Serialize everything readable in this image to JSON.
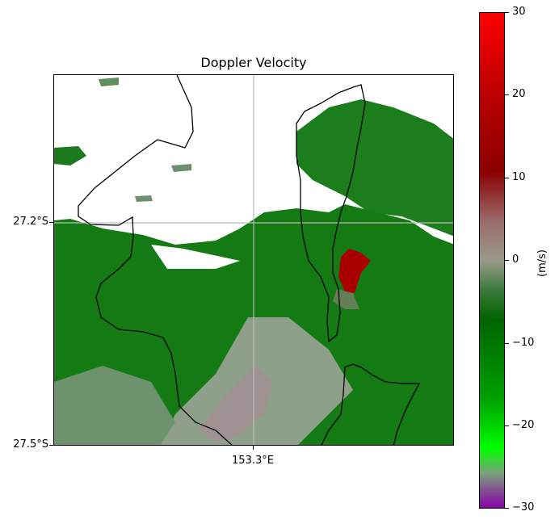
{
  "title": "Doppler Velocity",
  "axes": {
    "y_tick_labels": [
      "27.2°S",
      "27.5°S"
    ],
    "x_tick_labels": [
      "153.3°E"
    ]
  },
  "colorbar": {
    "unit_label": "(m/s)",
    "tick_labels": [
      "30",
      "20",
      "10",
      "0",
      "−10",
      "−20",
      "−30"
    ],
    "range": [
      -30,
      30
    ],
    "colors": {
      "top": "#ff0000",
      "dark_red": "#8b0000",
      "neutral": "#9a9a8a",
      "dark_green": "#006400",
      "bright_green": "#00ff00",
      "bottom": "#8800aa"
    }
  },
  "map_colors": {
    "mostly_green": "#1a7a1a",
    "grey_green": "#7a9a7a",
    "pinkish_grey": "#a09090",
    "red_cell": "#b00000",
    "coastline": "#000000",
    "gridline": "#bbbbbb"
  }
}
